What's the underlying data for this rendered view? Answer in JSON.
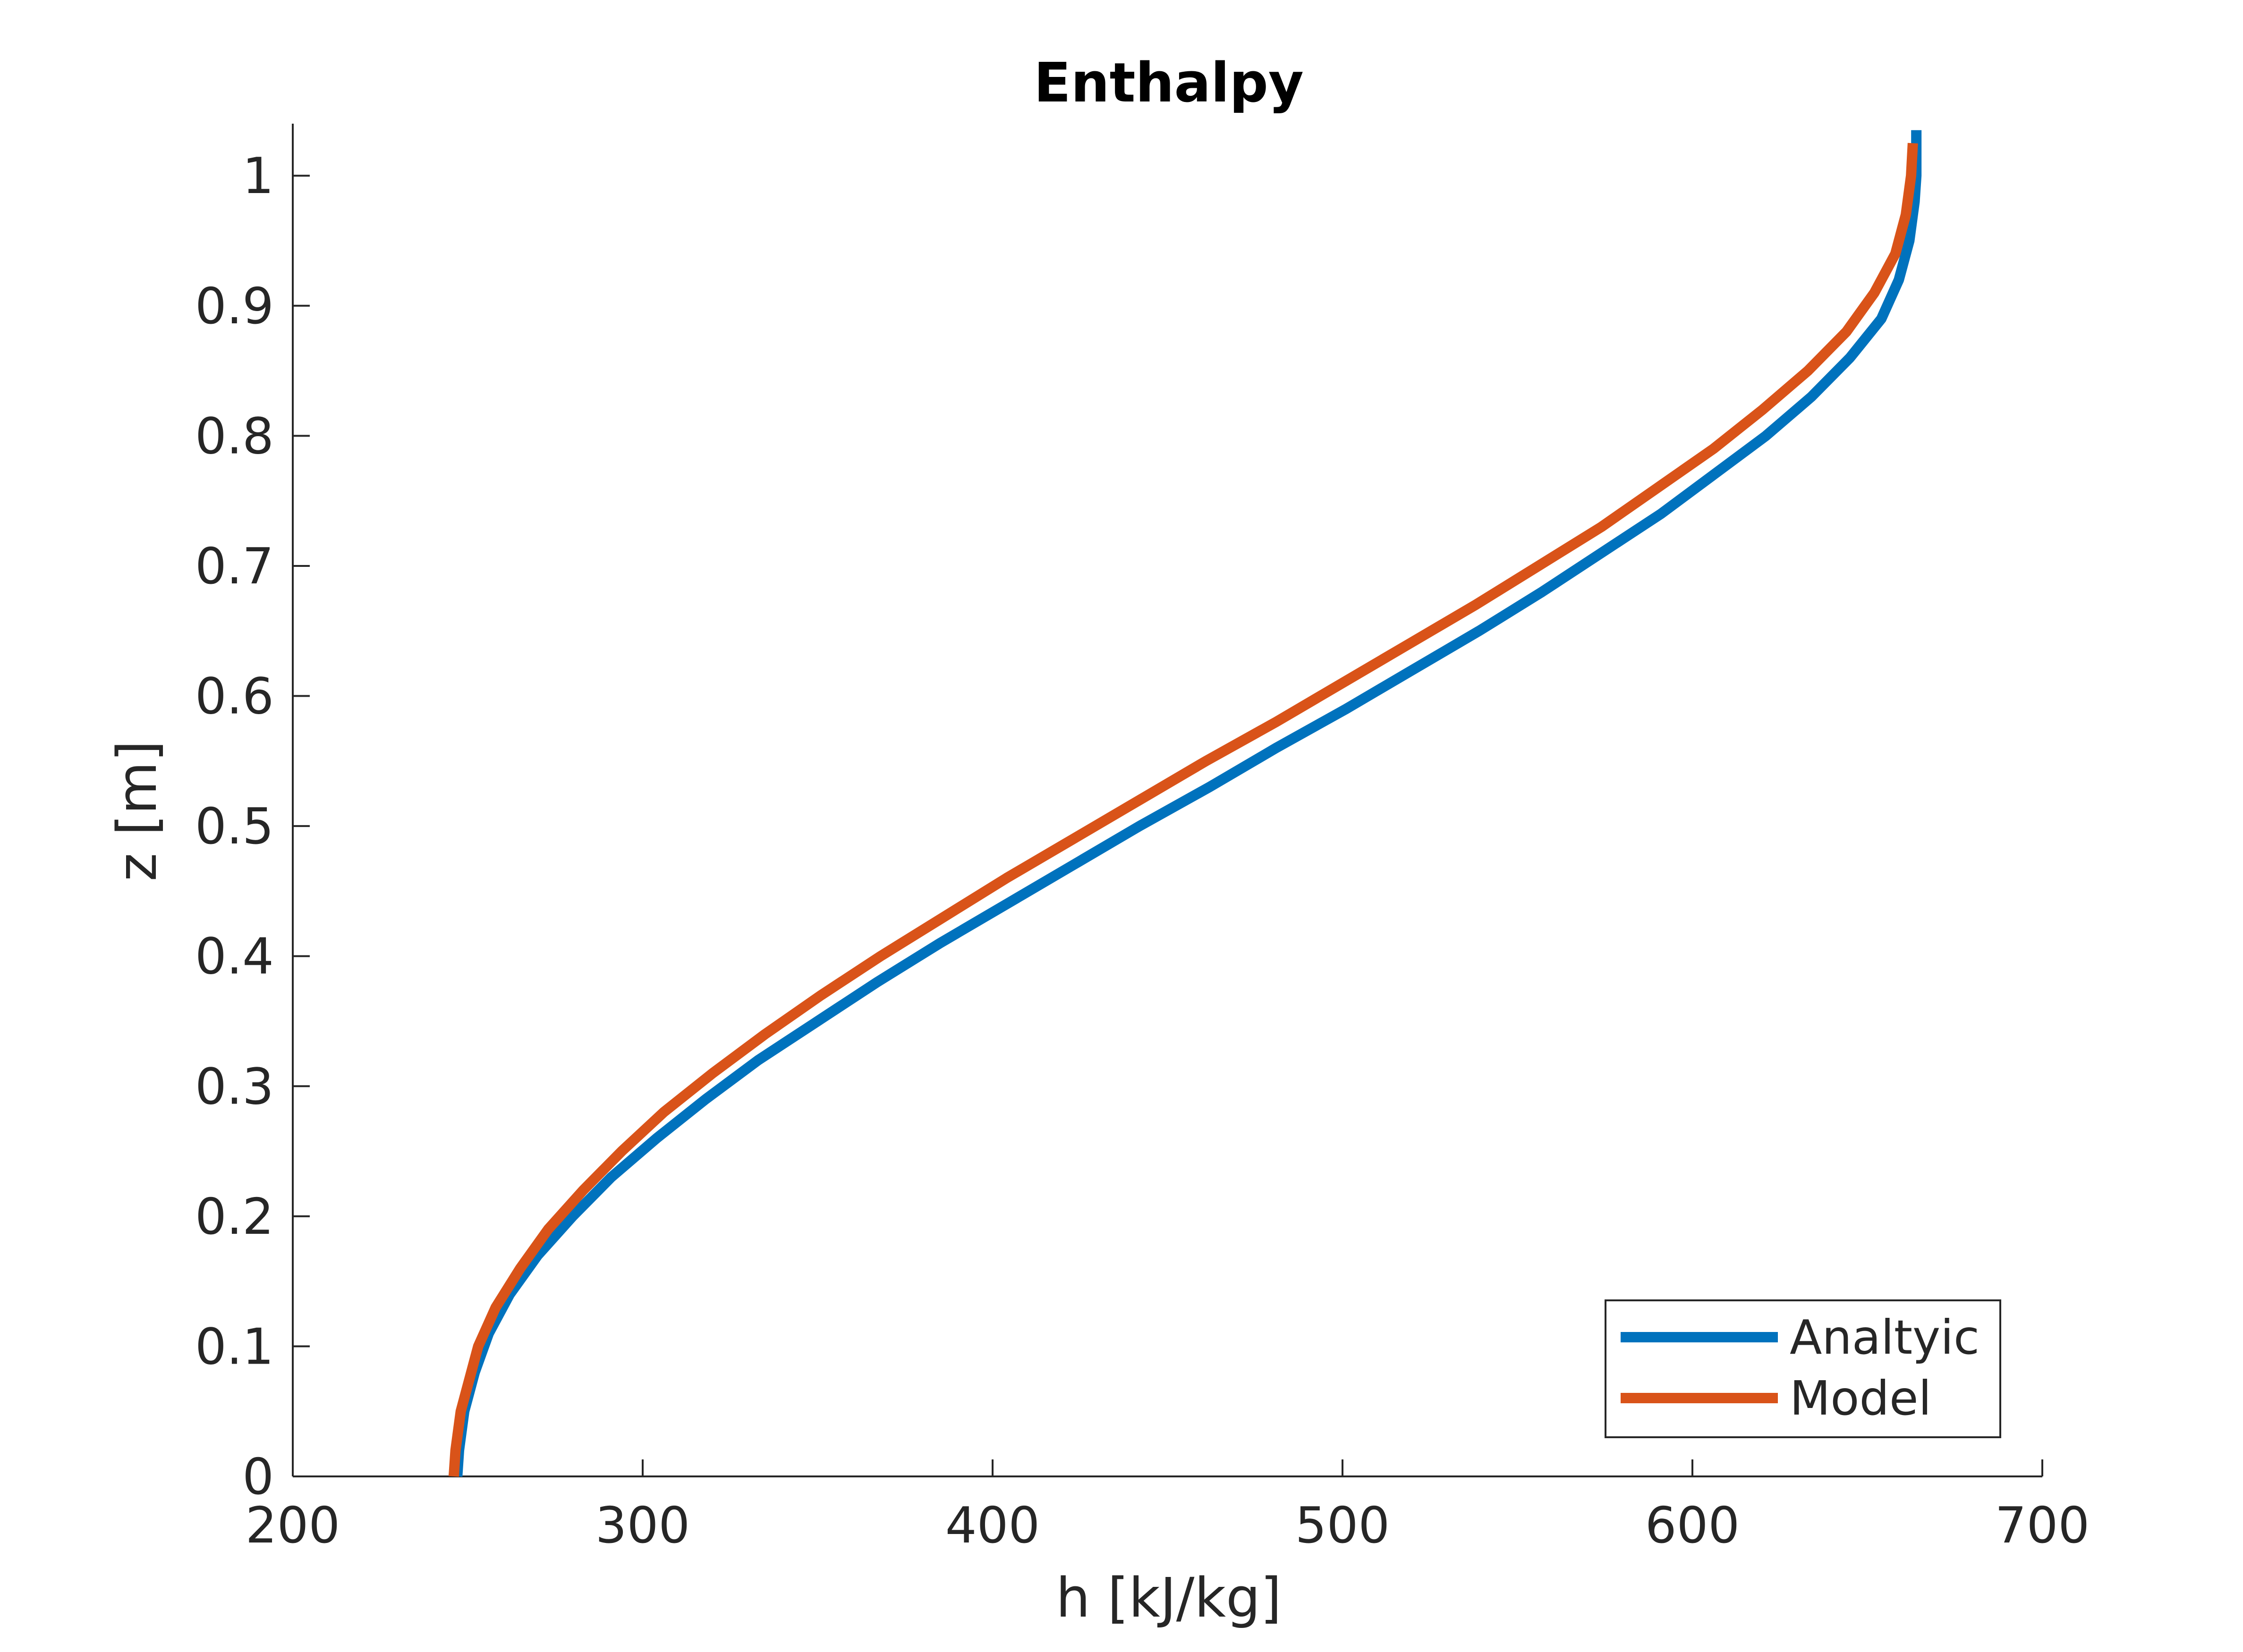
{
  "chart_data": {
    "type": "line",
    "title": "Enthalpy",
    "xlabel": "h [kJ/kg]",
    "ylabel": "z [m]",
    "xlim": [
      200,
      700
    ],
    "ylim": [
      0,
      1.04
    ],
    "xticks": [
      200,
      300,
      400,
      500,
      600,
      700
    ],
    "xtick_labels": [
      "200",
      "300",
      "400",
      "500",
      "600",
      "700"
    ],
    "yticks": [
      0,
      0.1,
      0.2,
      0.3,
      0.4,
      0.5,
      0.6,
      0.7,
      0.8,
      0.9,
      1
    ],
    "ytick_labels": [
      "0",
      "0.1",
      "0.2",
      "0.3",
      "0.4",
      "0.5",
      "0.6",
      "0.7",
      "0.8",
      "0.9",
      "1"
    ],
    "grid": false,
    "legend_position": "bottom-right",
    "series": [
      {
        "name": "Analtyic",
        "color": "#0072BD",
        "points": [
          [
            247,
            0.0
          ],
          [
            247.5,
            0.02
          ],
          [
            249,
            0.05
          ],
          [
            252,
            0.08
          ],
          [
            256,
            0.11
          ],
          [
            262,
            0.14
          ],
          [
            270,
            0.17
          ],
          [
            280,
            0.2
          ],
          [
            291,
            0.23
          ],
          [
            304,
            0.26
          ],
          [
            318,
            0.29
          ],
          [
            333,
            0.32
          ],
          [
            350,
            0.35
          ],
          [
            367,
            0.38
          ],
          [
            385,
            0.41
          ],
          [
            404,
            0.44
          ],
          [
            423,
            0.47
          ],
          [
            442,
            0.5
          ],
          [
            462,
            0.53
          ],
          [
            481,
            0.56
          ],
          [
            501,
            0.59
          ],
          [
            520,
            0.62
          ],
          [
            539,
            0.65
          ],
          [
            557,
            0.68
          ],
          [
            574,
            0.71
          ],
          [
            591,
            0.74
          ],
          [
            606,
            0.77
          ],
          [
            621,
            0.8
          ],
          [
            634,
            0.83
          ],
          [
            645,
            0.86
          ],
          [
            654,
            0.89
          ],
          [
            659,
            0.92
          ],
          [
            662,
            0.95
          ],
          [
            663.5,
            0.98
          ],
          [
            664,
            1.0
          ],
          [
            664,
            1.035
          ]
        ]
      },
      {
        "name": "Model",
        "color": "#D95319",
        "points": [
          [
            246,
            0.0
          ],
          [
            246.5,
            0.02
          ],
          [
            248,
            0.05
          ],
          [
            250,
            0.07
          ],
          [
            253,
            0.1
          ],
          [
            258,
            0.13
          ],
          [
            265,
            0.16
          ],
          [
            273,
            0.19
          ],
          [
            283,
            0.22
          ],
          [
            294,
            0.25
          ],
          [
            306,
            0.28
          ],
          [
            320,
            0.31
          ],
          [
            335,
            0.34
          ],
          [
            351,
            0.37
          ],
          [
            368,
            0.4
          ],
          [
            386,
            0.43
          ],
          [
            404,
            0.46
          ],
          [
            423,
            0.49
          ],
          [
            442,
            0.52
          ],
          [
            461,
            0.55
          ],
          [
            481,
            0.58
          ],
          [
            500,
            0.61
          ],
          [
            519,
            0.64
          ],
          [
            538,
            0.67
          ],
          [
            556,
            0.7
          ],
          [
            574,
            0.73
          ],
          [
            590,
            0.76
          ],
          [
            606,
            0.79
          ],
          [
            620,
            0.82
          ],
          [
            633,
            0.85
          ],
          [
            644,
            0.88
          ],
          [
            652,
            0.91
          ],
          [
            658,
            0.94
          ],
          [
            661,
            0.97
          ],
          [
            662.5,
            1.0
          ],
          [
            663,
            1.025
          ]
        ]
      }
    ]
  }
}
